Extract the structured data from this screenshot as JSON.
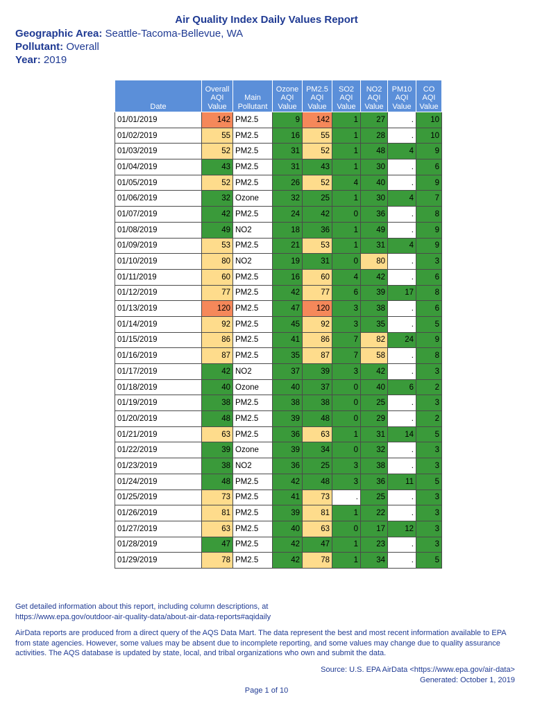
{
  "report": {
    "title": "Air Quality Index Daily Values Report",
    "geo_label": "Geographic Area:",
    "geo_value": "Seattle-Tacoma-Bellevue, WA",
    "pollutant_label": "Pollutant:",
    "pollutant_value": "Overall",
    "year_label": "Year:",
    "year_value": "2019"
  },
  "table": {
    "headers": [
      "Date",
      "Overall AQI Value",
      "Main Pollutant",
      "Ozone AQI Value",
      "PM2.5 AQI Value",
      "SO2 AQI Value",
      "NO2 AQI Value",
      "PM10 AQI Value",
      "CO AQI Value"
    ],
    "colors": {
      "good": "#3a9a3a",
      "moderate": "#fedc8c",
      "usg": "#f5885a"
    },
    "rows": [
      [
        "01/01/2019",
        "142",
        "PM2.5",
        "9",
        "142",
        "1",
        "27",
        ".",
        "10"
      ],
      [
        "01/02/2019",
        "55",
        "PM2.5",
        "16",
        "55",
        "1",
        "28",
        ".",
        "10"
      ],
      [
        "01/03/2019",
        "52",
        "PM2.5",
        "31",
        "52",
        "1",
        "48",
        "4",
        "9"
      ],
      [
        "01/04/2019",
        "43",
        "PM2.5",
        "31",
        "43",
        "1",
        "30",
        ".",
        "6"
      ],
      [
        "01/05/2019",
        "52",
        "PM2.5",
        "26",
        "52",
        "4",
        "40",
        ".",
        "9"
      ],
      [
        "01/06/2019",
        "32",
        "Ozone",
        "32",
        "25",
        "1",
        "30",
        "4",
        "7"
      ],
      [
        "01/07/2019",
        "42",
        "PM2.5",
        "24",
        "42",
        "0",
        "36",
        ".",
        "8"
      ],
      [
        "01/08/2019",
        "49",
        "NO2",
        "18",
        "36",
        "1",
        "49",
        ".",
        "9"
      ],
      [
        "01/09/2019",
        "53",
        "PM2.5",
        "21",
        "53",
        "1",
        "31",
        "4",
        "9"
      ],
      [
        "01/10/2019",
        "80",
        "NO2",
        "19",
        "31",
        "0",
        "80",
        ".",
        "3"
      ],
      [
        "01/11/2019",
        "60",
        "PM2.5",
        "16",
        "60",
        "4",
        "42",
        ".",
        "6"
      ],
      [
        "01/12/2019",
        "77",
        "PM2.5",
        "42",
        "77",
        "6",
        "39",
        "17",
        "8"
      ],
      [
        "01/13/2019",
        "120",
        "PM2.5",
        "47",
        "120",
        "3",
        "38",
        ".",
        "6"
      ],
      [
        "01/14/2019",
        "92",
        "PM2.5",
        "45",
        "92",
        "3",
        "35",
        ".",
        "5"
      ],
      [
        "01/15/2019",
        "86",
        "PM2.5",
        "41",
        "86",
        "7",
        "82",
        "24",
        "9"
      ],
      [
        "01/16/2019",
        "87",
        "PM2.5",
        "35",
        "87",
        "7",
        "58",
        ".",
        "8"
      ],
      [
        "01/17/2019",
        "42",
        "NO2",
        "37",
        "39",
        "3",
        "42",
        ".",
        "3"
      ],
      [
        "01/18/2019",
        "40",
        "Ozone",
        "40",
        "37",
        "0",
        "40",
        "6",
        "2"
      ],
      [
        "01/19/2019",
        "38",
        "PM2.5",
        "38",
        "38",
        "0",
        "25",
        ".",
        "3"
      ],
      [
        "01/20/2019",
        "48",
        "PM2.5",
        "39",
        "48",
        "0",
        "29",
        ".",
        "2"
      ],
      [
        "01/21/2019",
        "63",
        "PM2.5",
        "36",
        "63",
        "1",
        "31",
        "14",
        "5"
      ],
      [
        "01/22/2019",
        "39",
        "Ozone",
        "39",
        "34",
        "0",
        "32",
        ".",
        "3"
      ],
      [
        "01/23/2019",
        "38",
        "NO2",
        "36",
        "25",
        "3",
        "38",
        ".",
        "3"
      ],
      [
        "01/24/2019",
        "48",
        "PM2.5",
        "42",
        "48",
        "3",
        "36",
        "11",
        "5"
      ],
      [
        "01/25/2019",
        "73",
        "PM2.5",
        "41",
        "73",
        ".",
        "25",
        ".",
        "3"
      ],
      [
        "01/26/2019",
        "81",
        "PM2.5",
        "39",
        "81",
        "1",
        "22",
        ".",
        "3"
      ],
      [
        "01/27/2019",
        "63",
        "PM2.5",
        "40",
        "63",
        "0",
        "17",
        "12",
        "3"
      ],
      [
        "01/28/2019",
        "47",
        "PM2.5",
        "42",
        "47",
        "1",
        "23",
        ".",
        "3"
      ],
      [
        "01/29/2019",
        "78",
        "PM2.5",
        "42",
        "78",
        "1",
        "34",
        ".",
        "5"
      ]
    ]
  },
  "footer": {
    "info_line1": "Get detailed information about this report, including column descriptions, at",
    "info_line2": "https://www.epa.gov/outdoor-air-quality-data/about-air-data-reports#aqidaily",
    "disclaimer": "AirData reports are produced from a direct query of the AQS Data Mart. The data represent the best  and most recent information available to EPA from state agencies. However, some values may be absent due to incomplete  reporting, and some values may change due to quality assurance activities. The AQS database is updated  by state, local, and tribal organizations who own and submit the data.",
    "source": "Source: U.S. EPA AirData <https://www.epa.gov/air-data>",
    "generated": "Generated: October 1, 2019",
    "page": "Page 1 of 10"
  }
}
